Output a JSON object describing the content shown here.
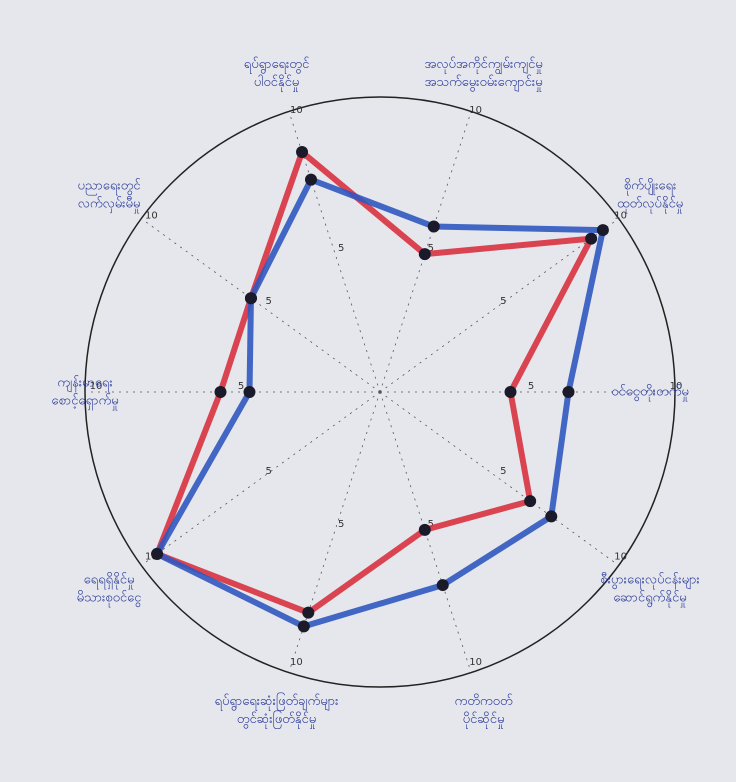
{
  "chart_data": {
    "type": "radar",
    "categories": [
      [
        "ဝင်ငွေတိုးတက်မှု"
      ],
      [
        "စိုက်ပျိုးရေး",
        "ထုတ်လုပ်နိုင်မှု"
      ],
      [
        "အလုပ်အကိုင်ကျွမ်းကျင်မှု",
        "အသက်မွေးဝမ်းကျောင်းမှု"
      ],
      [
        "ရပ်ရွာရေးတွင်",
        "ပါဝင်နိုင်မှု"
      ],
      [
        "ပညာရေးတွင်",
        "လက်လှမ်းမီမှု"
      ],
      [
        "ကျန်းမာရေး",
        "စောင့်ရှောက်မှု"
      ],
      [
        "ရေရရှိနိုင်မှု",
        "မိသားစုဝင်ငွေ"
      ],
      [
        "ရပ်ရွာရေးဆုံးဖြတ်ချက်များ",
        "တွင်ဆုံးဖြတ်နိုင်မှု"
      ],
      [
        "ကတိကဝတ်",
        "ပိုင်ဆိုင်မှု"
      ],
      [
        "စီးပွားရေးလုပ်ငန်းများ",
        "ဆောင်ရွက်နိုင်မှု"
      ]
    ],
    "series": [
      {
        "color": "#d8323f",
        "values": [
          4.5,
          9,
          5,
          8.7,
          5.5,
          5.5,
          9.5,
          8,
          5,
          6.4
        ]
      },
      {
        "color": "#2f58c0",
        "values": [
          6.5,
          9.5,
          6,
          7.7,
          5.5,
          4.5,
          9.5,
          8.5,
          7,
          7.3
        ]
      }
    ],
    "rlim": [
      0,
      10
    ],
    "rticks": [
      5,
      10
    ]
  }
}
